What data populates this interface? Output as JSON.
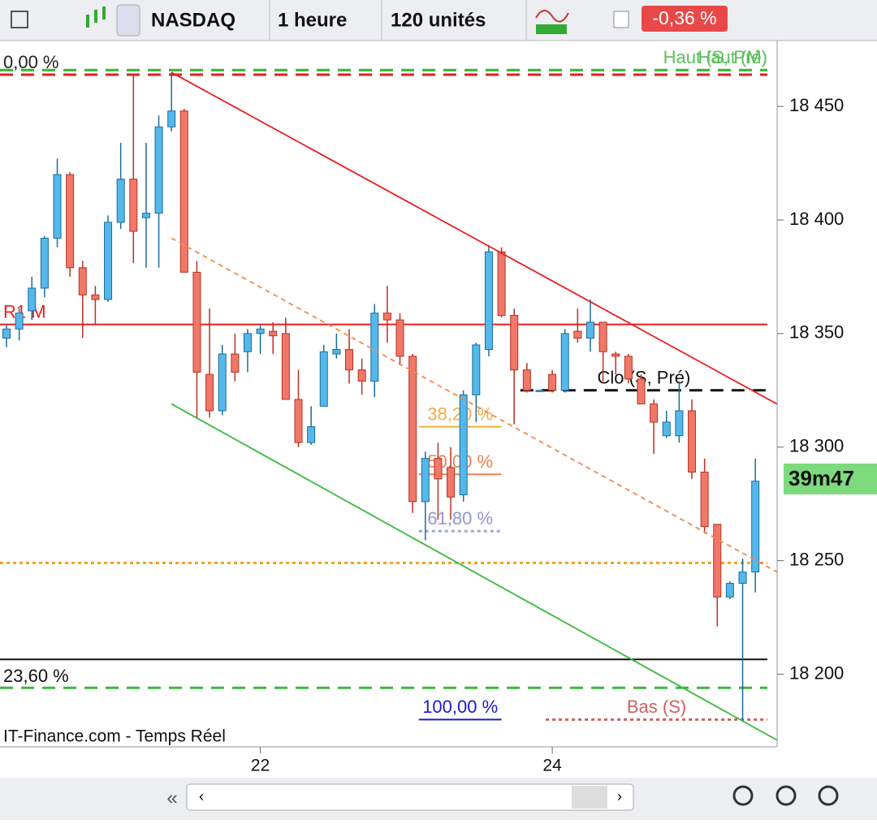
{
  "toolbar": {
    "symbol": "NASDAQ",
    "period": "1 heure",
    "units": "120 unités",
    "change": "-0,36 %"
  },
  "chart_data": {
    "type": "candlestick",
    "source": "IT-Finance.com - Temps Réel",
    "countdown": "39m47",
    "categories": [
      null,
      null,
      null,
      null,
      null,
      null,
      null,
      null,
      null,
      null,
      null,
      null,
      null,
      null,
      null,
      null,
      null,
      null,
      null,
      null,
      "22",
      null,
      null,
      null,
      null,
      null,
      null,
      null,
      null,
      null,
      null,
      null,
      null,
      null,
      null,
      null,
      null,
      null,
      null,
      null,
      null,
      null,
      null,
      "24",
      null,
      null,
      null,
      null,
      null,
      null,
      null,
      null,
      null,
      null,
      null,
      null,
      null,
      null,
      null,
      null
    ],
    "open": [
      18348,
      18352,
      18360,
      18370,
      18392,
      18420,
      18379,
      18367,
      18365,
      18399,
      18418,
      18401,
      18403,
      18441,
      18448,
      18377,
      18332,
      18316,
      18341,
      18342,
      18350,
      18351,
      18350,
      18321,
      18302,
      18318,
      18341,
      18343,
      18334,
      18329,
      18359,
      18356,
      18340,
      18276,
      18295,
      18291,
      18279,
      18323,
      18343,
      18386,
      18358,
      18334,
      18325,
      18332,
      18325,
      18351,
      18348,
      18355,
      18341,
      18340,
      18330,
      18319,
      18305,
      18305,
      18316,
      18289,
      18266,
      18234,
      18240,
      18245
    ],
    "high": [
      18354,
      18361,
      18375,
      18393,
      18427,
      18421,
      18382,
      18371,
      18402,
      18434,
      18464,
      18434,
      18446,
      18465,
      18449,
      18382,
      18361,
      18345,
      18350,
      18352,
      18354,
      18355,
      18357,
      18334,
      18318,
      18345,
      18350,
      18352,
      18339,
      18363,
      18371,
      18359,
      18341,
      18298,
      18302,
      18300,
      18325,
      18346,
      18389,
      18388,
      18361,
      18337,
      18325,
      18334,
      18352,
      18361,
      18365,
      18355,
      18342,
      18341,
      18332,
      18321,
      18316,
      18329,
      18321,
      18295,
      18266,
      18241,
      18251,
      18295
    ],
    "low": [
      18344,
      18347,
      18356,
      18366,
      18388,
      18375,
      18348,
      18354,
      18364,
      18396,
      18381,
      18379,
      18379,
      18439,
      18377,
      18313,
      18313,
      18314,
      18329,
      18333,
      18341,
      18341,
      18321,
      18300,
      18301,
      18318,
      18339,
      18328,
      18323,
      18322,
      18346,
      18336,
      18271,
      18259,
      18268,
      18268,
      18276,
      18311,
      18340,
      18357,
      18310,
      18324,
      18325,
      18324,
      18324,
      18346,
      18342,
      18329,
      18332,
      18328,
      18319,
      18297,
      18304,
      18302,
      18286,
      18262,
      18221,
      18233,
      18179,
      18236
    ],
    "close": [
      18352,
      18359,
      18370,
      18392,
      18420,
      18379,
      18367,
      18365,
      18399,
      18418,
      18395,
      18403,
      18441,
      18448,
      18377,
      18333,
      18316,
      18341,
      18333,
      18350,
      18352,
      18349,
      18321,
      18302,
      18309,
      18342,
      18343,
      18334,
      18329,
      18359,
      18356,
      18340,
      18276,
      18295,
      18286,
      18278,
      18323,
      18345,
      18386,
      18358,
      18334,
      18325,
      18325,
      18325,
      18350,
      18348,
      18355,
      18342,
      18340,
      18330,
      18319,
      18311,
      18311,
      18316,
      18289,
      18265,
      18234,
      18240,
      18245,
      18285
    ],
    "up_color": "#55b8ea",
    "down_color": "#f07868",
    "ylim": [
      18168,
      18479
    ],
    "yticks": [
      {
        "value": 18200,
        "label": "18 200"
      },
      {
        "value": 18250,
        "label": "18 250"
      },
      {
        "value": 18300,
        "label": "18 300"
      },
      {
        "value": 18350,
        "label": "18 350"
      },
      {
        "value": 18400,
        "label": "18 400"
      },
      {
        "value": 18450,
        "label": "18 450"
      }
    ],
    "levels": [
      {
        "value": 18464,
        "label": "0,00 %",
        "color": "#e02020",
        "style": "dashed",
        "side": "left",
        "pos": "above",
        "label_color": "#222222"
      },
      {
        "value": 18466,
        "label": "Haut (S, Pré)",
        "color": "#3cb83c",
        "style": "dashed",
        "side": "right",
        "pos": "above",
        "label_color": "#5cc05c"
      },
      {
        "value": 18466,
        "label": "Haut (M)",
        "color": "#3cb83c",
        "style": "dashed",
        "side": "right",
        "pos": "above",
        "label_color": "#5cc05c"
      },
      {
        "value": 18354,
        "label": "R1 M",
        "color": "#ee1c1c",
        "style": "solid",
        "side": "left",
        "pos": "above",
        "label_color": "#ee1c1c"
      },
      {
        "value": 18249,
        "color": "#f0a020",
        "style": "dotted"
      },
      {
        "value": 18206.5,
        "label": "23,60 %",
        "color": "#111111",
        "style": "solid",
        "side": "left",
        "pos": "below",
        "label_color": "#111111"
      },
      {
        "value": 18194,
        "color": "#3cb83c",
        "style": "dashed"
      },
      {
        "value": 18325,
        "label": "Clo (S, Pré)",
        "color": "#111111",
        "style": "dashed",
        "start": 41,
        "side": "center",
        "pos": "above",
        "label_color": "#111111"
      },
      {
        "value": 18180,
        "label": "Bas (S)",
        "color": "#d06060",
        "style": "dotted",
        "start": 43,
        "side": "center",
        "pos": "above",
        "label_color": "#d06060"
      },
      {
        "value": 18309,
        "label": "38,20 %",
        "color": "#f0b040",
        "style": "solid",
        "start": 33,
        "end": 39,
        "side": "center",
        "pos": "above",
        "label_color": "#f0b040"
      },
      {
        "value": 18288,
        "label": "50,00 %",
        "color": "#f08050",
        "style": "solid",
        "start": 33,
        "end": 39,
        "side": "center",
        "pos": "above",
        "label_color": "#f08050"
      },
      {
        "value": 18263,
        "label": "61,80 %",
        "color": "#a0a8d8",
        "style": "dotted",
        "start": 33,
        "end": 39,
        "side": "center",
        "pos": "above",
        "label_color": "#9098d0"
      },
      {
        "value": 18180,
        "label": "100,00 %",
        "color": "#1a1acc",
        "style": "solid",
        "start": 33,
        "end": 39,
        "side": "center",
        "pos": "above",
        "label_color": "#1a1acc"
      }
    ],
    "trendlines": [
      {
        "color": "#e82020",
        "style": "solid",
        "x": [
          13,
          60.7
        ],
        "y": [
          18465,
          18319
        ]
      },
      {
        "color": "#f08a50",
        "style": "dashed",
        "x": [
          13,
          60.7
        ],
        "y": [
          18392,
          18245
        ]
      },
      {
        "color": "#3cb83c",
        "style": "solid",
        "x": [
          13,
          60.7
        ],
        "y": [
          18319,
          18171
        ]
      }
    ]
  }
}
